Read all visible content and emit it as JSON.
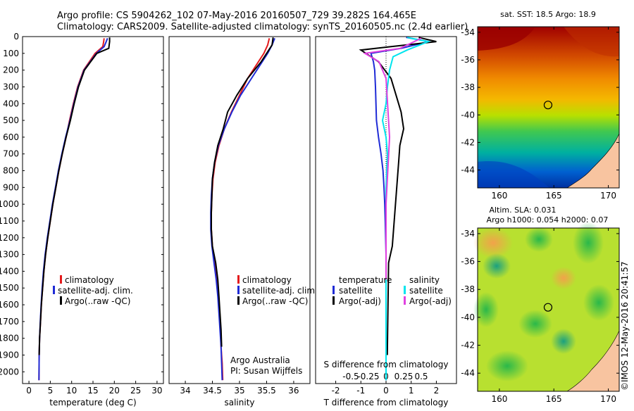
{
  "header": {
    "line1": "Argo profile: CS 5904262_102 07-May-2016 20160507_729 39.282S 164.465E",
    "line2": "Climatology: CARS2009. Satellite-adjusted climatology: synTS_20160505.nc (2.4d earlier)"
  },
  "colors": {
    "climatology": "#e41a1c",
    "satellite": "#1f2bd6",
    "argo": "#000000",
    "sal_satellite": "#00e5ee",
    "sal_argo": "#e040e0"
  },
  "depth_ticks": [
    0,
    100,
    200,
    300,
    400,
    500,
    600,
    700,
    800,
    900,
    1000,
    1100,
    1200,
    1300,
    1400,
    1500,
    1600,
    1700,
    1800,
    1900,
    2000
  ],
  "legend1": {
    "clim": "climatology",
    "sat": "satellite-adj. clim.",
    "argo": "Argo(..raw -QC)"
  },
  "legend2": {
    "clim": "climatology",
    "sat": "satellite-adj. clim.",
    "argo": "Argo(..raw -QC)"
  },
  "legend3": {
    "temp_title": "temperature",
    "temp_sat": "satellite",
    "temp_argo": "Argo(-adj)",
    "sal_title": "salinity",
    "sal_sat": "satellite",
    "sal_argo": "Argo(-adj)"
  },
  "credit": {
    "line1": "Argo Australia",
    "line2": "PI: Susan Wijffels"
  },
  "diff_labels": {
    "s_title": "S difference from climatology",
    "t_title": "T difference from climatology"
  },
  "map1": {
    "title": "sat. SST: 18.5  Argo: 18.9"
  },
  "map2": {
    "title1": "Altim. SLA: 0.031",
    "title2": "Argo h1000: 0.054 h2000: 0.07"
  },
  "stamp": "©IMOS 12-May-2016 20:41:57",
  "chart_data": [
    {
      "type": "line",
      "xlabel": "temperature (deg C)",
      "xlim": [
        -1.5,
        31.5
      ],
      "xticks": [
        0,
        5,
        10,
        15,
        20,
        25,
        30
      ],
      "ylim": [
        2070,
        0
      ],
      "series": [
        {
          "name": "climatology",
          "color": "#e41a1c",
          "x": [
            17.6,
            17.5,
            17.3,
            15.5,
            12.8,
            11.4,
            10.4,
            9.5,
            8.7,
            7.8,
            7.0,
            6.3,
            5.6,
            5.0,
            4.4,
            3.9,
            3.5,
            3.2,
            2.9,
            2.7,
            2.5,
            2.4,
            2.35
          ],
          "y": [
            10,
            30,
            60,
            100,
            200,
            300,
            400,
            500,
            600,
            700,
            800,
            900,
            1000,
            1100,
            1200,
            1300,
            1400,
            1500,
            1600,
            1700,
            1800,
            1900,
            2050
          ]
        },
        {
          "name": "satellite-adj. clim.",
          "color": "#1f2bd6",
          "x": [
            18.4,
            18.1,
            17.6,
            15.8,
            12.9,
            11.5,
            10.5,
            9.6,
            8.6,
            7.7,
            6.9,
            6.2,
            5.5,
            4.9,
            4.3,
            3.8,
            3.4,
            3.1,
            2.85,
            2.65,
            2.5,
            2.4,
            2.35
          ],
          "y": [
            10,
            30,
            60,
            100,
            200,
            300,
            400,
            500,
            600,
            700,
            800,
            900,
            1000,
            1100,
            1200,
            1300,
            1400,
            1500,
            1600,
            1700,
            1800,
            1900,
            2050
          ]
        },
        {
          "name": "Argo(..raw -QC)",
          "color": "#000000",
          "x": [
            18.9,
            18.9,
            18.7,
            15.9,
            13.0,
            11.6,
            10.6,
            9.7,
            8.7,
            7.8,
            7.0,
            6.3,
            5.6,
            5.0,
            4.4,
            3.9,
            3.5,
            3.2,
            2.9,
            2.7,
            2.5,
            2.4
          ],
          "y": [
            5,
            30,
            70,
            100,
            200,
            300,
            400,
            500,
            600,
            700,
            800,
            900,
            1000,
            1100,
            1200,
            1300,
            1400,
            1500,
            1600,
            1700,
            1800,
            1900
          ]
        }
      ]
    },
    {
      "type": "line",
      "xlabel": "salinity",
      "xlim": [
        33.7,
        36.3
      ],
      "xticks": [
        34,
        34.5,
        35,
        35.5,
        36
      ],
      "ylim": [
        2070,
        0
      ],
      "series": [
        {
          "name": "climatology",
          "color": "#e41a1c",
          "x": [
            35.55,
            35.52,
            35.45,
            35.35,
            35.15,
            35.0,
            34.85,
            34.72,
            34.62,
            34.55,
            34.51,
            34.49,
            34.48,
            34.48,
            34.5,
            34.54,
            34.58,
            34.61,
            34.63,
            34.65,
            34.66,
            34.68,
            34.69
          ],
          "y": [
            10,
            50,
            100,
            150,
            250,
            350,
            450,
            550,
            650,
            750,
            850,
            950,
            1050,
            1150,
            1250,
            1350,
            1450,
            1550,
            1650,
            1750,
            1850,
            1950,
            2050
          ]
        },
        {
          "name": "satellite-adj. clim.",
          "color": "#1f2bd6",
          "x": [
            35.65,
            35.6,
            35.52,
            35.42,
            35.22,
            35.02,
            34.86,
            34.72,
            34.61,
            34.54,
            34.5,
            34.48,
            34.47,
            34.47,
            34.49,
            34.53,
            34.57,
            34.6,
            34.62,
            34.64,
            34.66,
            34.67,
            34.68
          ],
          "y": [
            10,
            50,
            100,
            150,
            250,
            350,
            450,
            550,
            650,
            750,
            850,
            950,
            1050,
            1150,
            1250,
            1350,
            1450,
            1550,
            1650,
            1750,
            1850,
            1950,
            2050
          ]
        },
        {
          "name": "Argo(..raw -QC)",
          "color": "#000000",
          "x": [
            35.62,
            35.6,
            35.5,
            35.4,
            35.15,
            34.95,
            34.78,
            34.7,
            34.6,
            34.54,
            34.5,
            34.49,
            34.48,
            34.48,
            34.5,
            34.56,
            34.6,
            34.62,
            34.64,
            34.66,
            34.67
          ],
          "y": [
            5,
            50,
            100,
            150,
            250,
            350,
            450,
            550,
            650,
            750,
            850,
            950,
            1050,
            1150,
            1250,
            1350,
            1450,
            1550,
            1650,
            1750,
            1850
          ]
        }
      ]
    },
    {
      "type": "line",
      "xlabel": "T difference from climatology",
      "xlabel_top": "S difference from climatology",
      "xlim": [
        -2.8,
        2.8
      ],
      "xticks": [
        -2,
        -1,
        0,
        1,
        2
      ],
      "xticks_s": [
        -0.5,
        -0.25,
        0,
        0.25,
        0.5
      ],
      "ylim": [
        2070,
        0
      ],
      "series": [
        {
          "name": "temperature satellite",
          "color": "#1f2bd6",
          "x": [
            0.8,
            1.7,
            0.6,
            -0.6,
            -0.5,
            -0.45,
            -0.42,
            -0.4,
            -0.38,
            -0.3,
            -0.2,
            -0.12,
            -0.08,
            -0.05,
            -0.03,
            0,
            0
          ],
          "y": [
            5,
            30,
            70,
            100,
            150,
            200,
            300,
            400,
            500,
            600,
            700,
            800,
            900,
            1000,
            1100,
            1300,
            2050
          ]
        },
        {
          "name": "temperature Argo(-adj)",
          "color": "#000000",
          "x": [
            1.3,
            2.0,
            0.2,
            -1.0,
            -0.3,
            0.2,
            0.4,
            0.6,
            0.7,
            0.55,
            0.5,
            0.45,
            0.4,
            0.35,
            0.3,
            0.25,
            0.1,
            0.05
          ],
          "y": [
            5,
            30,
            60,
            80,
            150,
            250,
            350,
            450,
            550,
            650,
            750,
            850,
            950,
            1050,
            1150,
            1250,
            1350,
            1900
          ]
        },
        {
          "name": "salinity satellite",
          "color": "#00e5ee",
          "x": [
            0.3,
            0.6,
            0.3,
            0.1,
            0.05,
            0.02,
            0.0,
            -0.05,
            0.0,
            0.02,
            0.0,
            0.0
          ],
          "y": [
            5,
            30,
            80,
            120,
            200,
            300,
            400,
            500,
            600,
            700,
            900,
            2050
          ]
        },
        {
          "name": "salinity Argo(-adj)",
          "color": "#e040e0",
          "x": [
            0.5,
            0.2,
            -0.3,
            -0.1,
            0.0,
            0.05,
            0.0,
            0.0
          ],
          "y": [
            10,
            70,
            100,
            150,
            250,
            600,
            1000,
            1450
          ]
        }
      ]
    }
  ],
  "maps": [
    {
      "xticks": [
        160,
        165,
        170
      ],
      "yticks": [
        -34,
        -36,
        -38,
        -40,
        -42,
        -44
      ],
      "xlim": [
        158,
        171
      ],
      "ylim": [
        -45.3,
        -33.6
      ],
      "marker": {
        "lon": 164.465,
        "lat": -39.282
      }
    },
    {
      "xticks": [
        160,
        165,
        170
      ],
      "yticks": [
        -34,
        -36,
        -38,
        -40,
        -42,
        -44
      ],
      "xlim": [
        158,
        171
      ],
      "ylim": [
        -45.3,
        -33.6
      ],
      "marker": {
        "lon": 164.465,
        "lat": -39.282
      }
    }
  ]
}
